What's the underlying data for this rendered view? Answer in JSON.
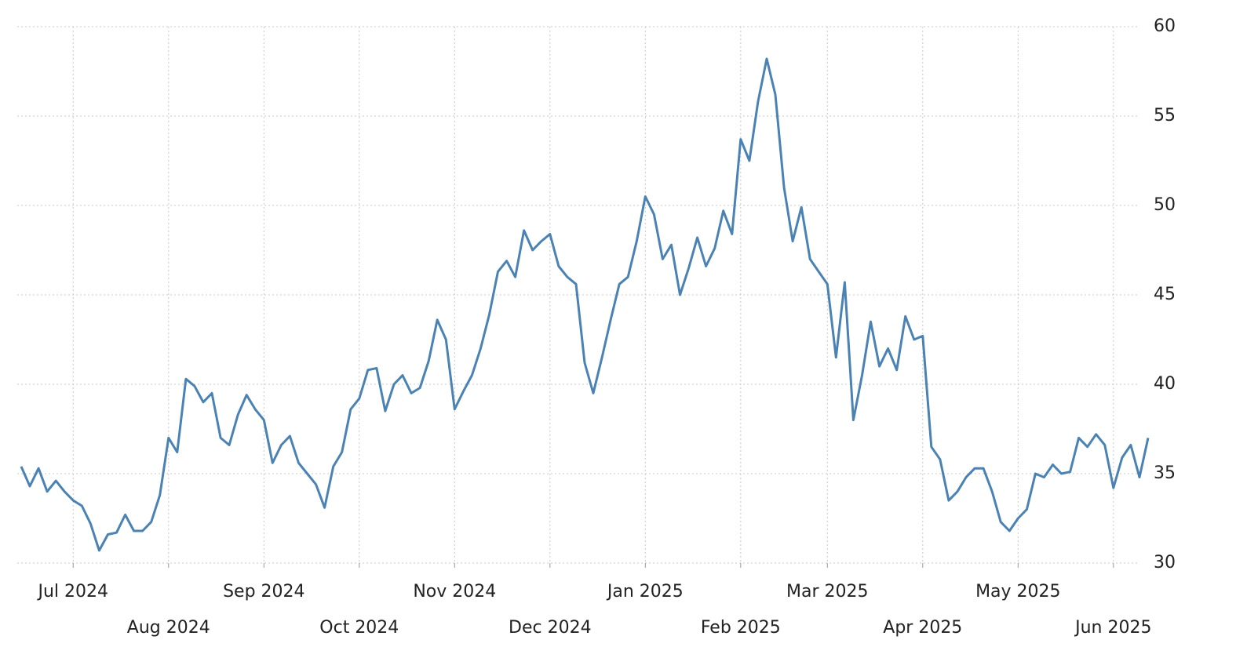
{
  "chart_data": {
    "type": "line",
    "categories": [
      null,
      null,
      null,
      null,
      null,
      null,
      "Jul 2024",
      null,
      null,
      null,
      null,
      null,
      null,
      null,
      null,
      null,
      null,
      "Aug 2024",
      null,
      null,
      null,
      null,
      null,
      null,
      null,
      null,
      null,
      null,
      "Sep 2024",
      null,
      null,
      null,
      null,
      null,
      null,
      null,
      null,
      null,
      null,
      "Oct 2024",
      null,
      null,
      null,
      null,
      null,
      null,
      null,
      null,
      null,
      null,
      "Nov 2024",
      null,
      null,
      null,
      null,
      null,
      null,
      null,
      null,
      null,
      null,
      "Dec 2024",
      null,
      null,
      null,
      null,
      null,
      null,
      null,
      null,
      null,
      null,
      "Jan 2025",
      null,
      null,
      null,
      null,
      null,
      null,
      null,
      null,
      null,
      null,
      "Feb 2025",
      null,
      null,
      null,
      null,
      null,
      null,
      null,
      null,
      null,
      "Mar 2025",
      null,
      null,
      null,
      null,
      null,
      null,
      null,
      null,
      null,
      null,
      "Apr 2025",
      null,
      null,
      null,
      null,
      null,
      null,
      null,
      null,
      null,
      null,
      "May 2025",
      null,
      null,
      null,
      null,
      null,
      null,
      null,
      null,
      null,
      null,
      "Jun 2025",
      null,
      null,
      null,
      null
    ],
    "series": [
      {
        "color": "#4a82b4",
        "values": [
          35.4,
          34.3,
          35.3,
          34.0,
          34.6,
          34.0,
          33.5,
          33.2,
          32.2,
          30.7,
          31.6,
          31.7,
          32.7,
          31.8,
          31.8,
          32.3,
          33.8,
          37.0,
          36.2,
          40.3,
          39.9,
          39.0,
          39.5,
          37.0,
          36.6,
          38.3,
          39.4,
          38.6,
          38.0,
          35.6,
          36.6,
          37.1,
          35.6,
          35.0,
          34.4,
          33.1,
          35.4,
          36.2,
          38.6,
          39.2,
          40.8,
          40.9,
          38.5,
          40.0,
          40.5,
          39.5,
          39.8,
          41.3,
          43.6,
          42.5,
          38.6,
          39.6,
          40.5,
          42.0,
          43.9,
          46.3,
          46.9,
          46.0,
          48.6,
          47.5,
          48.0,
          48.4,
          46.6,
          46.0,
          45.6,
          41.2,
          39.5,
          41.5,
          43.6,
          45.6,
          46.0,
          48.0,
          50.5,
          49.5,
          47.0,
          47.8,
          45.0,
          46.5,
          48.2,
          46.6,
          47.6,
          49.7,
          48.4,
          53.7,
          52.5,
          55.8,
          58.2,
          56.2,
          51.0,
          48.0,
          49.9,
          47.0,
          46.3,
          45.6,
          41.5,
          45.7,
          38.0,
          40.5,
          43.5,
          41.0,
          42.0,
          40.8,
          43.8,
          42.5,
          42.7,
          36.5,
          35.8,
          33.5,
          34.0,
          34.8,
          35.3,
          35.3,
          34.0,
          32.3,
          31.8,
          32.5,
          33.0,
          35.0,
          34.8,
          35.5,
          35.0,
          35.1,
          37.0,
          36.5,
          37.2,
          36.6,
          34.2,
          35.9,
          36.6,
          34.8,
          37.0
        ]
      }
    ],
    "ylim": [
      30,
      60
    ],
    "yticks": [
      30,
      35,
      40,
      45,
      50,
      55,
      60
    ],
    "grid": true
  }
}
